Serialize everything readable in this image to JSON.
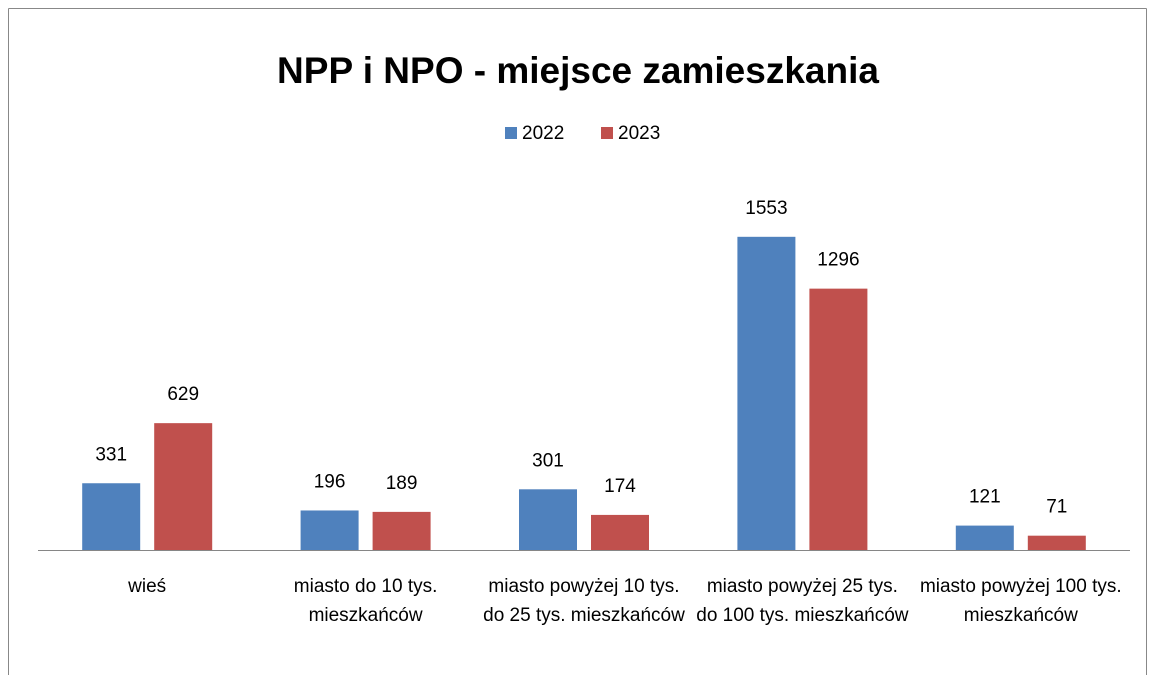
{
  "chart_data": {
    "type": "bar",
    "title": "NPP i NPO - miejsce zamieszkania",
    "categories": [
      "wieś",
      "miasto do 10 tys. mieszkańców",
      "miasto powyżej 10 tys. do 25 tys. mieszkańców",
      "miasto powyżej 25 tys. do 100 tys. mieszkańców",
      "miasto powyżej 100 tys. mieszkańców"
    ],
    "series": [
      {
        "name": "2022",
        "color": "#4f81bd",
        "values": [
          331,
          196,
          301,
          1553,
          121
        ]
      },
      {
        "name": "2023",
        "color": "#c0504d",
        "values": [
          629,
          189,
          174,
          1296,
          71
        ]
      }
    ],
    "ylim": [
      0,
      1800
    ],
    "legend": "top"
  }
}
